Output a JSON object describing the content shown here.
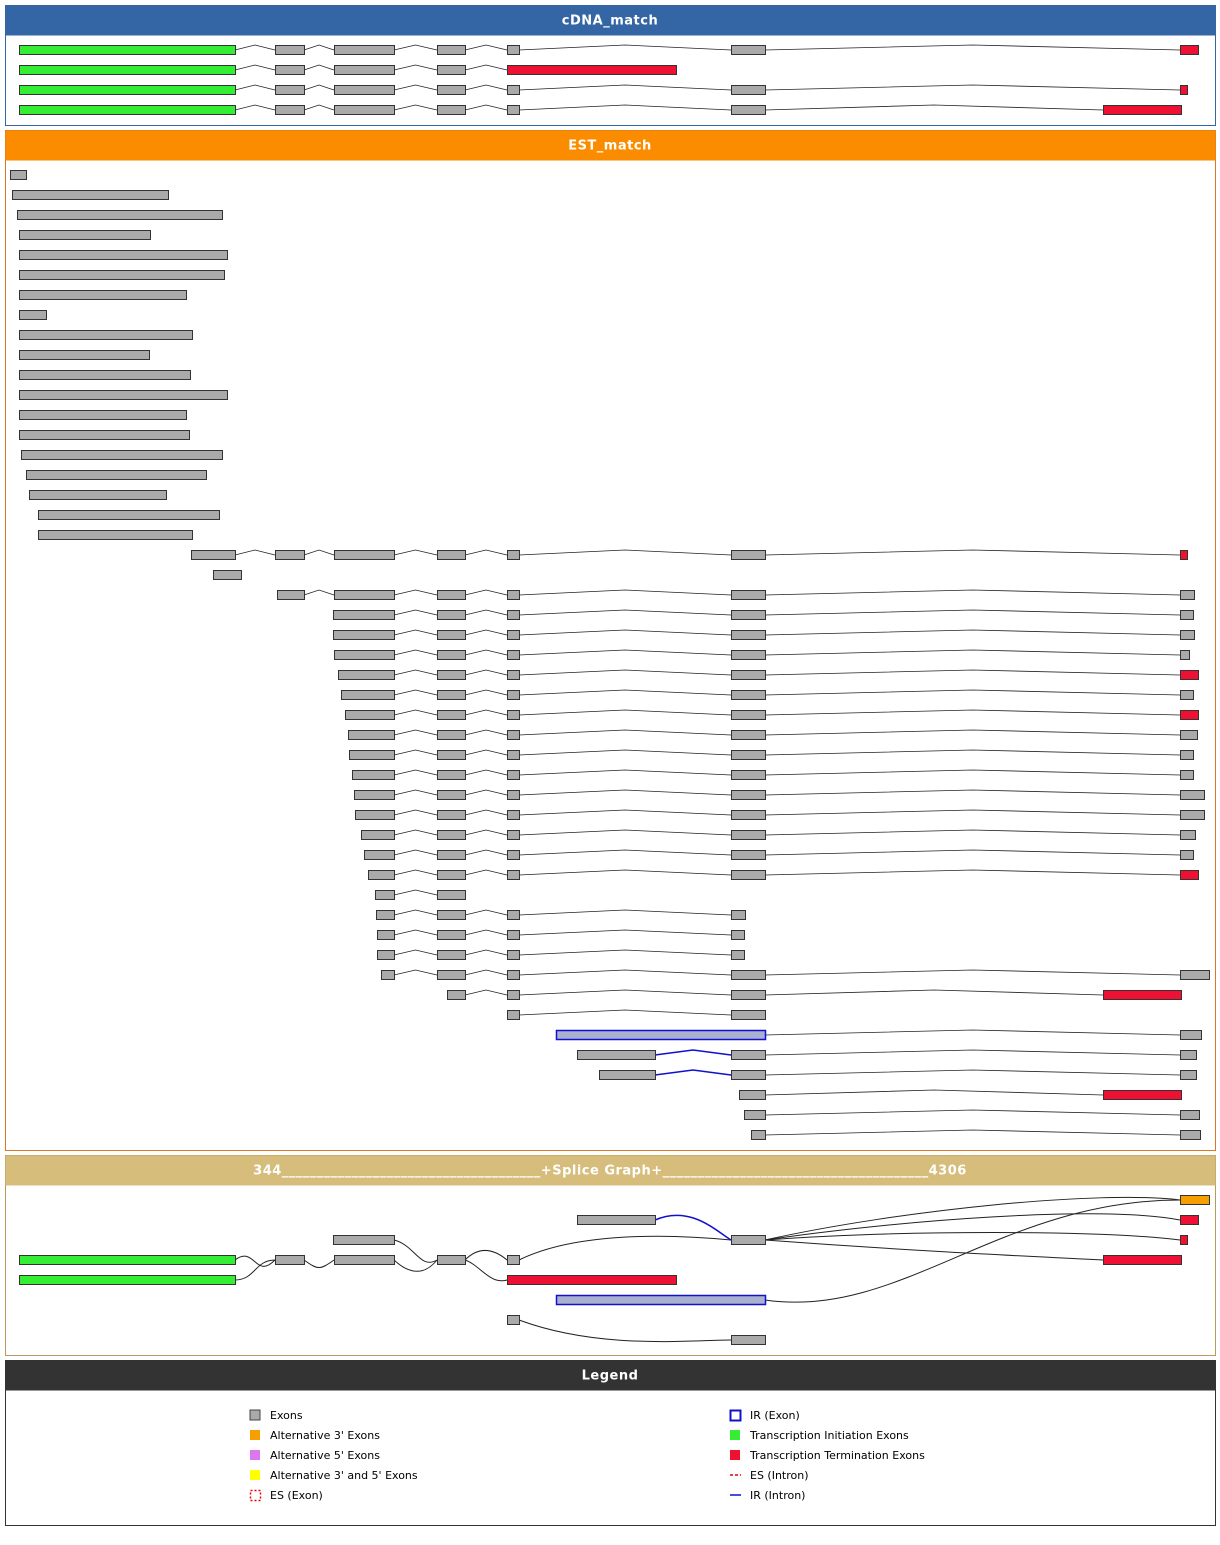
{
  "panels": [
    {
      "title": "cDNA_match"
    },
    {
      "title": "EST_match"
    },
    {
      "title": "344_____________________________________+Splice Graph+______________________________________4306"
    },
    {
      "title": "Legend"
    }
  ],
  "legend": [
    "Exons",
    "Alternative 3' Exons",
    "Alternative 5' Exons",
    "Alternative 3' and 5' Exons",
    "ES (Exon)",
    "IR (Exon)",
    "Transcription Initiation Exons",
    "Transcription Termination Exons",
    "ES (Intron)",
    "IR (Intron)"
  ]
}
